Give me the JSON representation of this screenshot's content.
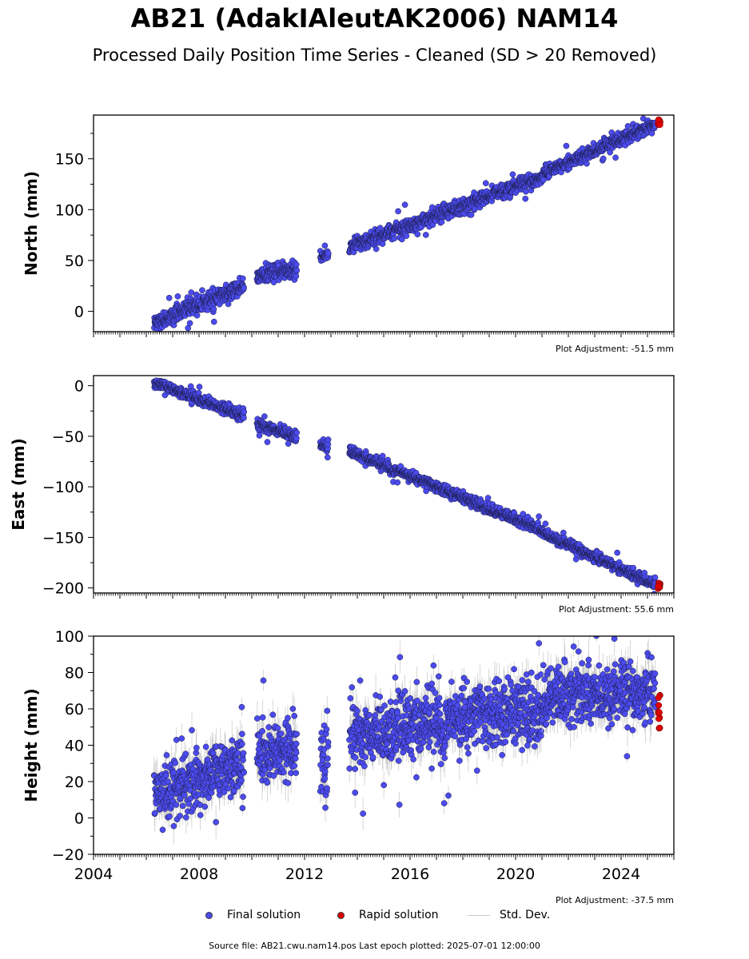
{
  "title": "AB21 (AdakIAleutAK2006) NAM14",
  "subtitle": "Processed Daily Position Time Series - Cleaned (SD > 20 Removed)",
  "legend": {
    "final": "Final solution",
    "rapid": "Rapid solution",
    "std": "Std. Dev."
  },
  "source": "Source file: AB21.cwu.nam14.pos  Last epoch plotted: 2025-07-01 12:00:00",
  "colors": {
    "final": "#4b4bf0",
    "rapid": "#e00000",
    "std": "#b8b8b8",
    "edge": "#1a1a40"
  },
  "chart_data": [
    {
      "type": "scatter",
      "panel": "north",
      "ylabel": "North (mm)",
      "adjustment": "Plot Adjustment: -51.5 mm",
      "xlim": [
        2004.0,
        2026.0
      ],
      "ylim": [
        -20,
        193
      ],
      "yticks": [
        0,
        50,
        100,
        150
      ],
      "xtick_labels": [
        "2004",
        "2008",
        "2012",
        "2016",
        "2020",
        "2024"
      ],
      "segments": [
        {
          "x": [
            2006.3,
            2009.7
          ],
          "y": [
            -12,
            25
          ],
          "noise": 4
        },
        {
          "x": [
            2010.2,
            2011.7
          ],
          "y": [
            35,
            41
          ],
          "noise": 4
        },
        {
          "x": [
            2012.6,
            2012.9
          ],
          "y": [
            53,
            57
          ],
          "noise": 2
        },
        {
          "x": [
            2013.7,
            2021.0
          ],
          "y": [
            63,
            132
          ],
          "noise": 3.5
        },
        {
          "x": [
            2021.0,
            2025.3
          ],
          "y": [
            135,
            184
          ],
          "noise": 3
        }
      ],
      "rapid": {
        "x": [
          2025.3,
          2025.5
        ],
        "y": [
          183,
          189
        ]
      }
    },
    {
      "type": "scatter",
      "panel": "east",
      "ylabel": "East (mm)",
      "adjustment": "Plot Adjustment: 55.6 mm",
      "xlim": [
        2004.0,
        2026.0
      ],
      "ylim": [
        -205,
        10
      ],
      "yticks": [
        0,
        -50,
        -100,
        -150,
        -200
      ],
      "xtick_labels": [
        "2004",
        "2008",
        "2012",
        "2016",
        "2020",
        "2024"
      ],
      "segments": [
        {
          "x": [
            2006.3,
            2009.7
          ],
          "y": [
            3,
            -30
          ],
          "noise": 2.5
        },
        {
          "x": [
            2010.2,
            2011.7
          ],
          "y": [
            -38,
            -50
          ],
          "noise": 3
        },
        {
          "x": [
            2012.6,
            2012.9
          ],
          "y": [
            -58,
            -62
          ],
          "noise": 2
        },
        {
          "x": [
            2013.7,
            2021.0
          ],
          "y": [
            -65,
            -143
          ],
          "noise": 2.5
        },
        {
          "x": [
            2021.0,
            2025.3
          ],
          "y": [
            -145,
            -197
          ],
          "noise": 2.5
        }
      ],
      "rapid": {
        "x": [
          2025.3,
          2025.5
        ],
        "y": [
          -195,
          -201
        ]
      }
    },
    {
      "type": "scatter",
      "panel": "height",
      "ylabel": "Height (mm)",
      "adjustment": "Plot Adjustment: -37.5 mm",
      "xlim": [
        2004.0,
        2026.0
      ],
      "ylim": [
        -20,
        100
      ],
      "yticks": [
        -20,
        0,
        20,
        40,
        60,
        80,
        100
      ],
      "xtick_labels": [
        "2004",
        "2008",
        "2012",
        "2016",
        "2020",
        "2024"
      ],
      "segments": [
        {
          "x": [
            2006.3,
            2009.7
          ],
          "y": [
            12,
            30
          ],
          "noise": 8
        },
        {
          "x": [
            2010.2,
            2011.7
          ],
          "y": [
            35,
            38
          ],
          "noise": 8
        },
        {
          "x": [
            2012.6,
            2012.9
          ],
          "y": [
            30,
            32
          ],
          "noise": 10
        },
        {
          "x": [
            2013.7,
            2021.0
          ],
          "y": [
            45,
            60
          ],
          "noise": 9
        },
        {
          "x": [
            2021.0,
            2025.3
          ],
          "y": [
            66,
            70
          ],
          "noise": 8
        }
      ],
      "rapid": {
        "x": [
          2025.3,
          2025.5
        ],
        "y": [
          48,
          72
        ]
      }
    }
  ]
}
